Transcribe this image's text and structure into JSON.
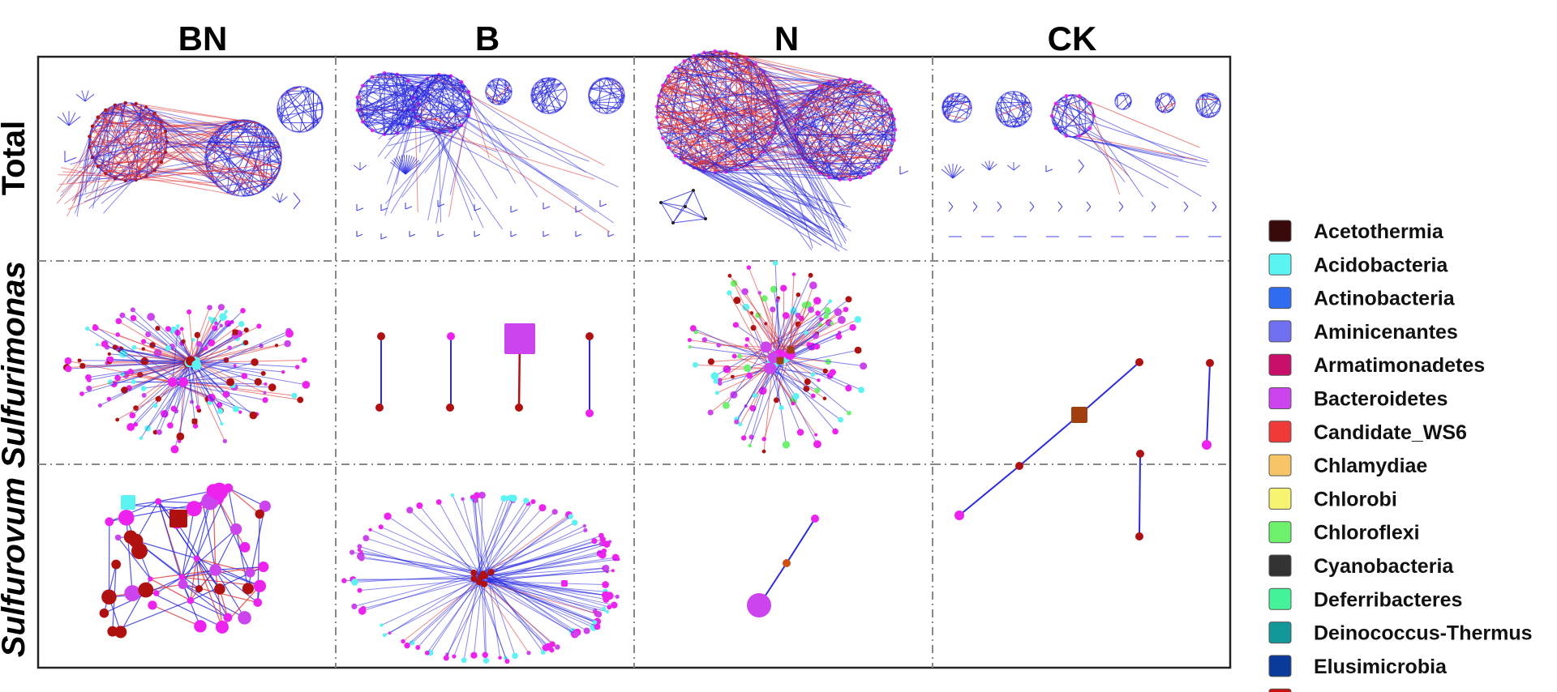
{
  "columns": [
    "BN",
    "B",
    "N",
    "CK"
  ],
  "rows": [
    {
      "label": "Total",
      "italic": false
    },
    {
      "label": "Sulfurimonas",
      "italic": true
    },
    {
      "label": "Sulfurovum",
      "italic": true
    }
  ],
  "edge_colors": {
    "positive": "#e03030",
    "negative": "#2a2ae0"
  },
  "legend": [
    {
      "label": "Acetothermia",
      "color": "#3a0a0a"
    },
    {
      "label": "Acidobacteria",
      "color": "#5cf3f3"
    },
    {
      "label": "Actinobacteria",
      "color": "#2f6cf0"
    },
    {
      "label": "Aminicenantes",
      "color": "#6f6ff2"
    },
    {
      "label": "Armatimonadetes",
      "color": "#c8106a"
    },
    {
      "label": "Bacteroidetes",
      "color": "#cc44ee"
    },
    {
      "label": "Candidate_WS6",
      "color": "#f03a3a"
    },
    {
      "label": "Chlamydiae",
      "color": "#f7c468"
    },
    {
      "label": "Chlorobi",
      "color": "#f7f472"
    },
    {
      "label": "Chloroflexi",
      "color": "#6ef26e"
    },
    {
      "label": "Cyanobacteria",
      "color": "#333333"
    },
    {
      "label": "Deferribacteres",
      "color": "#44f29a"
    },
    {
      "label": "Deinococcus-Thermus",
      "color": "#129898"
    },
    {
      "label": "Elusimicrobia",
      "color": "#0a3a9a"
    },
    {
      "label": "",
      "color": "#cc1010"
    }
  ]
}
